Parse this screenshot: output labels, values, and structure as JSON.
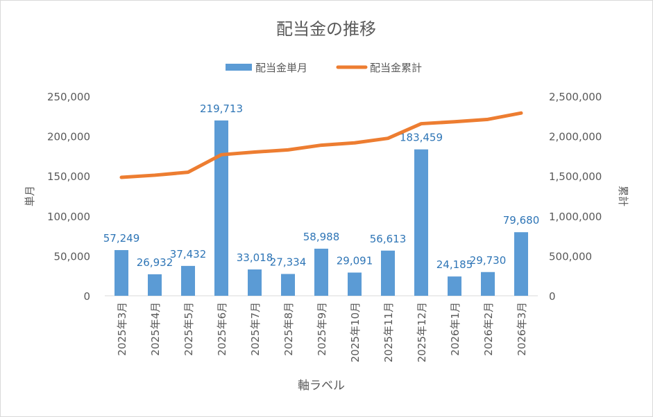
{
  "chart_data": {
    "type": "bar+line",
    "title": "配当金の推移",
    "xlabel": "軸ラベル",
    "ylabel_left": "単月",
    "ylabel_right": "累計",
    "categories": [
      "2025年3月",
      "2025年4月",
      "2025年5月",
      "2025年6月",
      "2025年7月",
      "2025年8月",
      "2025年9月",
      "2025年10月",
      "2025年11月",
      "2025年12月",
      "2026年1月",
      "2026年2月",
      "2026年3月"
    ],
    "series": [
      {
        "name": "配当金単月",
        "type": "bar",
        "axis": "left",
        "color": "#5B9BD5",
        "values": [
          57249,
          26932,
          37432,
          219713,
          33018,
          27334,
          58988,
          29091,
          56613,
          183459,
          24185,
          29730,
          79680
        ],
        "labels": [
          "57,249",
          "26,932",
          "37,432",
          "219,713",
          "33,018",
          "27,334",
          "58,988",
          "29,091",
          "56,613",
          "183,459",
          "24,185",
          "29,730",
          "79,680"
        ]
      },
      {
        "name": "配当金累計",
        "type": "line",
        "axis": "right",
        "color": "#ED7D31",
        "values": [
          1484000,
          1510932,
          1548364,
          1768077,
          1801095,
          1828429,
          1887417,
          1916508,
          1973121,
          2156580,
          2180765,
          2210495,
          2290175
        ]
      }
    ],
    "ylim_left": [
      0,
      250000
    ],
    "ylim_right": [
      0,
      2500000
    ],
    "yticks_left": [
      "0",
      "50,000",
      "100,000",
      "150,000",
      "200,000",
      "250,000"
    ],
    "yticks_right": [
      "0",
      "500,000",
      "1,000,000",
      "1,500,000",
      "2,000,000",
      "2,500,000"
    ],
    "label_color": "#2E75B6",
    "legend_position": "top",
    "grid": false
  }
}
